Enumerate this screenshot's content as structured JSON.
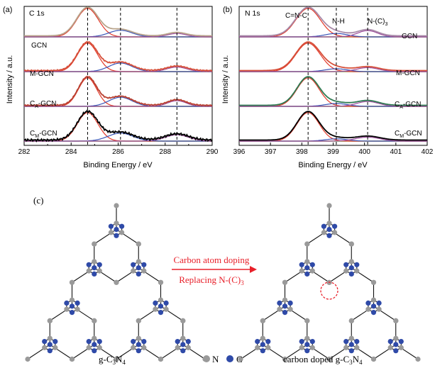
{
  "chart_data": [
    {
      "type": "line",
      "panel_label": "(a)",
      "element_label": "C 1s",
      "xlabel": "Binding Energy / eV",
      "ylabel": "Intensity / a.u.",
      "xlim": [
        282,
        290
      ],
      "xticks": [
        "282",
        "284",
        "286",
        "288",
        "290"
      ],
      "x_minor": [
        283,
        285,
        287,
        289
      ],
      "reference_lines": [
        284.7,
        286.1,
        288.5
      ],
      "samples": [
        {
          "name": "GCN",
          "peaks": [
            {
              "center": 284.7,
              "height": 1.0,
              "width": 0.65
            },
            {
              "center": 286.1,
              "height": 0.23,
              "width": 0.7
            },
            {
              "center": 288.5,
              "height": 0.12,
              "width": 0.55
            }
          ],
          "noise": 0.0
        },
        {
          "name": "M-GCN",
          "peaks": [
            {
              "center": 284.7,
              "height": 1.0,
              "width": 0.6
            },
            {
              "center": 286.1,
              "height": 0.3,
              "width": 0.7
            },
            {
              "center": 288.5,
              "height": 0.16,
              "width": 0.6
            }
          ],
          "noise": 0.02
        },
        {
          "name": "CA-GCN",
          "peaks": [
            {
              "center": 284.7,
              "height": 1.0,
              "width": 0.55
            },
            {
              "center": 286.1,
              "height": 0.32,
              "width": 0.7
            },
            {
              "center": 288.5,
              "height": 0.2,
              "width": 0.55
            }
          ],
          "noise": 0.02
        },
        {
          "name": "CM-GCN",
          "peaks": [
            {
              "center": 284.7,
              "height": 1.0,
              "width": 0.62
            },
            {
              "center": 286.1,
              "height": 0.28,
              "width": 0.75
            },
            {
              "center": 288.5,
              "height": 0.22,
              "width": 0.7
            }
          ],
          "noise": 0.04
        }
      ]
    },
    {
      "type": "line",
      "panel_label": "(b)",
      "element_label": "N 1s",
      "xlabel": "Binding Energy / eV",
      "ylabel": "Intensity / a.u.",
      "xlim": [
        396,
        402
      ],
      "xticks": [
        "396",
        "397",
        "398",
        "399",
        "400",
        "401",
        "402"
      ],
      "reference_lines": [
        398.2,
        399.1,
        400.1
      ],
      "annotations": [
        "C=N-C",
        "N-H",
        "N-(C)3"
      ],
      "samples": [
        {
          "name": "GCN",
          "peaks": [
            {
              "center": 398.2,
              "height": 1.0,
              "width": 0.55
            },
            {
              "center": 399.1,
              "height": 0.12,
              "width": 0.5
            },
            {
              "center": 400.1,
              "height": 0.22,
              "width": 0.45
            }
          ]
        },
        {
          "name": "M-GCN",
          "peaks": [
            {
              "center": 398.2,
              "height": 1.0,
              "width": 0.55
            },
            {
              "center": 399.1,
              "height": 0.1,
              "width": 0.5
            },
            {
              "center": 400.1,
              "height": 0.14,
              "width": 0.5
            }
          ]
        },
        {
          "name": "CA-GCN",
          "peaks": [
            {
              "center": 398.2,
              "height": 1.0,
              "width": 0.5
            },
            {
              "center": 399.1,
              "height": 0.1,
              "width": 0.5
            },
            {
              "center": 400.1,
              "height": 0.17,
              "width": 0.5
            }
          ]
        },
        {
          "name": "CM-GCN",
          "peaks": [
            {
              "center": 398.2,
              "height": 1.0,
              "width": 0.5
            },
            {
              "center": 399.1,
              "height": 0.08,
              "width": 0.5
            },
            {
              "center": 400.1,
              "height": 0.14,
              "width": 0.55
            }
          ]
        }
      ]
    }
  ],
  "labels_a": {
    "gcn": "GCN",
    "mgcn": "M-GCN",
    "ca_main": "C",
    "ca_sub": "A",
    "ca_tail": "-GCN",
    "cm_main": "C",
    "cm_sub": "M",
    "cm_tail": "-GCN"
  },
  "labels_b": {
    "ann_cnc": "C=N-C",
    "ann_nh": "N-H",
    "ann_nc_main": "N-(C)",
    "ann_nc_sub": "3"
  },
  "diagram": {
    "panel_label": "(c)",
    "arrow_line1": "Carbon atom doping",
    "arrow_line2_main": "Replacing N-(C)",
    "arrow_line2_sub": "3",
    "left_caption_main": "g-C",
    "left_caption_sub1": "3",
    "left_caption_mid": "N",
    "left_caption_sub2": "4",
    "right_caption_main": "carbon doped g-C",
    "right_caption_sub1": "3",
    "right_caption_mid": "N",
    "right_caption_sub2": "4",
    "legend_n": "N",
    "legend_c": "C"
  },
  "colors": {
    "n_atom": "#9a9a9a",
    "c_atom": "#2f4aa8",
    "arrow": "#e8202a",
    "envelope_gcn": "#b8a38a",
    "envelope_mgcn": "#d6503a",
    "envelope_ca": "#b84030",
    "envelope_cm": "#000000",
    "main_peak": "#e33a2a",
    "second_peak": "#3a56b8",
    "third_peak": "#9a4a9a",
    "baseline": "#7ab04a"
  }
}
